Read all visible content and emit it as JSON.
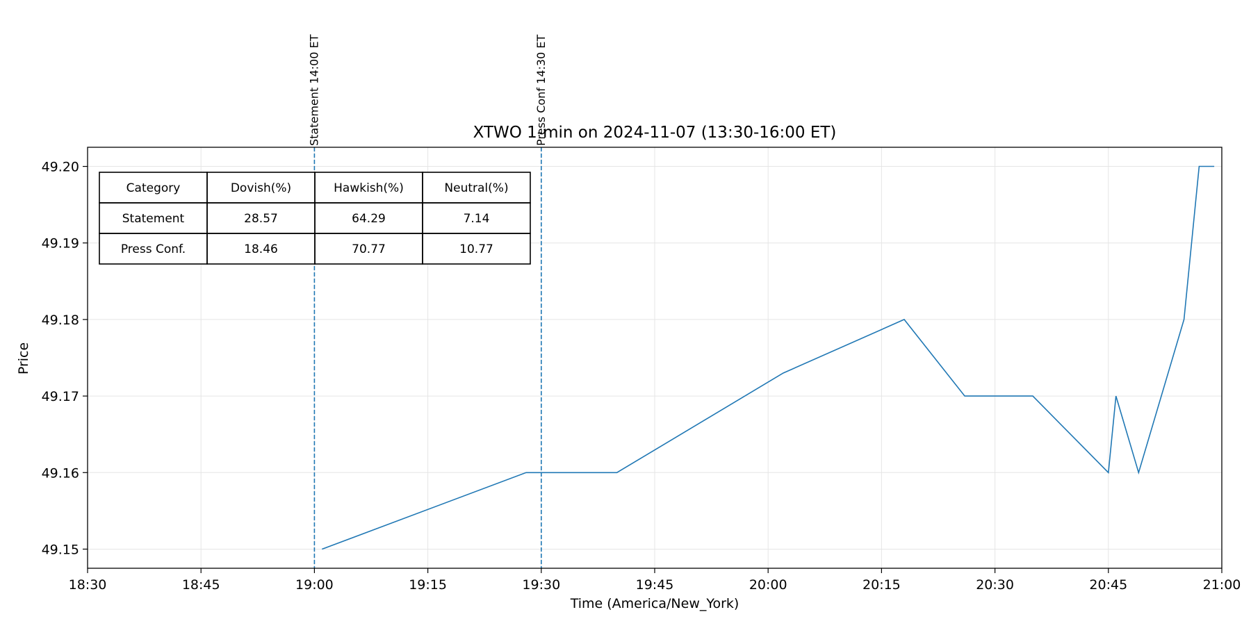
{
  "chart_data": {
    "type": "line",
    "title": "XTWO 1-min on 2024-11-07 (13:30-16:00 ET)",
    "xlabel": "Time (America/New_York)",
    "ylabel": "Price",
    "xlim": [
      "18:30",
      "21:00"
    ],
    "ylim": [
      49.1475,
      49.2025
    ],
    "x_ticks": [
      "18:30",
      "18:45",
      "19:00",
      "19:15",
      "19:30",
      "19:45",
      "20:00",
      "20:15",
      "20:30",
      "20:45",
      "21:00"
    ],
    "y_ticks": [
      "49.15",
      "49.16",
      "49.17",
      "49.18",
      "49.19",
      "49.20"
    ],
    "grid": true,
    "series": [
      {
        "color": "#1f77b4",
        "x": [
          "19:01",
          "19:28",
          "19:40",
          "20:02",
          "20:18",
          "20:26",
          "20:35",
          "20:45",
          "20:46",
          "20:49",
          "20:55",
          "20:57",
          "20:59"
        ],
        "y": [
          49.15,
          49.16,
          49.16,
          49.173,
          49.18,
          49.17,
          49.17,
          49.16,
          49.17,
          49.16,
          49.18,
          49.2,
          49.2
        ]
      }
    ],
    "vlines": [
      {
        "x": "19:00",
        "label": "Statement 14:00 ET",
        "color": "#1f77b4",
        "style": "dashed"
      },
      {
        "x": "19:30",
        "label": "Press Conf 14:30 ET",
        "color": "#1f77b4",
        "style": "dashed"
      }
    ],
    "table": {
      "columns": [
        "Category",
        "Dovish(%)",
        "Hawkish(%)",
        "Neutral(%)"
      ],
      "rows": [
        [
          "Statement",
          "28.57",
          "64.29",
          "7.14"
        ],
        [
          "Press Conf.",
          "18.46",
          "70.77",
          "10.77"
        ]
      ]
    }
  }
}
